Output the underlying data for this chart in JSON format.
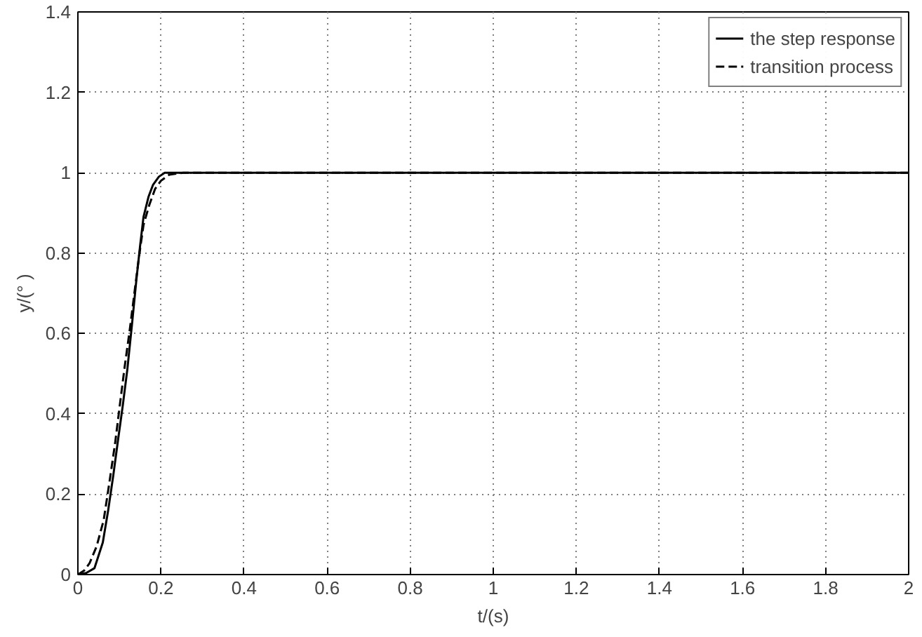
{
  "chart_data": {
    "type": "line",
    "xlabel": "t/(s)",
    "ylabel": "y/(° )",
    "xlim": [
      0,
      2
    ],
    "ylim": [
      0,
      1.4
    ],
    "xticks": [
      0,
      0.2,
      0.4,
      0.6,
      0.8,
      1,
      1.2,
      1.4,
      1.6,
      1.8,
      2
    ],
    "yticks": [
      0,
      0.2,
      0.4,
      0.6,
      0.8,
      1,
      1.2,
      1.4
    ],
    "grid": true,
    "legend": "top right",
    "marker": "none",
    "series": [
      {
        "name": "the step response",
        "color": "#000000",
        "line_style": "solid",
        "x": [
          0,
          0.02,
          0.04,
          0.06,
          0.073,
          0.085,
          0.096,
          0.108,
          0.119,
          0.13,
          0.141,
          0.15,
          0.158,
          0.17,
          0.181,
          0.195,
          0.209,
          0.23,
          0.3,
          0.5,
          1,
          1.5,
          2
        ],
        "values": [
          0,
          0.004,
          0.016,
          0.08,
          0.16,
          0.245,
          0.33,
          0.42,
          0.51,
          0.62,
          0.735,
          0.82,
          0.89,
          0.94,
          0.97,
          0.99,
          1.0,
          1.0,
          1.0,
          1.0,
          1.0,
          1.0,
          1.0
        ]
      },
      {
        "name": "transition process",
        "color": "#000000",
        "line_style": "dashed",
        "x": [
          0,
          0.015,
          0.028,
          0.045,
          0.062,
          0.076,
          0.09,
          0.102,
          0.113,
          0.125,
          0.136,
          0.147,
          0.158,
          0.172,
          0.186,
          0.2,
          0.22,
          0.254,
          0.3,
          0.5,
          1,
          1.5,
          2
        ],
        "values": [
          0,
          0.01,
          0.028,
          0.07,
          0.135,
          0.23,
          0.33,
          0.43,
          0.52,
          0.61,
          0.7,
          0.79,
          0.87,
          0.92,
          0.96,
          0.98,
          0.995,
          1.0,
          1.0,
          1.0,
          1.0,
          1.0,
          1.0
        ]
      }
    ]
  }
}
